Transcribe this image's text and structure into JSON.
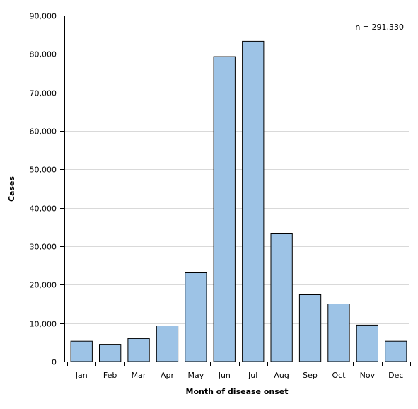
{
  "chart_data": {
    "type": "bar",
    "title": "",
    "xlabel": "Month of disease onset",
    "ylabel": "Cases",
    "annotation": "n = 291,330",
    "categories": [
      "Jan",
      "Feb",
      "Mar",
      "Apr",
      "May",
      "Jun",
      "Jul",
      "Aug",
      "Sep",
      "Oct",
      "Nov",
      "Dec"
    ],
    "values": [
      5300,
      4500,
      6000,
      9300,
      23100,
      79300,
      83300,
      33400,
      17400,
      15000,
      9500,
      5300
    ],
    "ylim": [
      0,
      90000
    ],
    "yticks": [
      0,
      10000,
      20000,
      30000,
      40000,
      50000,
      60000,
      70000,
      80000,
      90000
    ],
    "ytick_labels": [
      "0",
      "10,000",
      "20,000",
      "30,000",
      "40,000",
      "50,000",
      "60,000",
      "70,000",
      "80,000",
      "90,000"
    ],
    "grid": true,
    "bar_color": "#9dc3e6",
    "bar_edge_color": "#000000",
    "grid_color": "#d9d9d9"
  }
}
